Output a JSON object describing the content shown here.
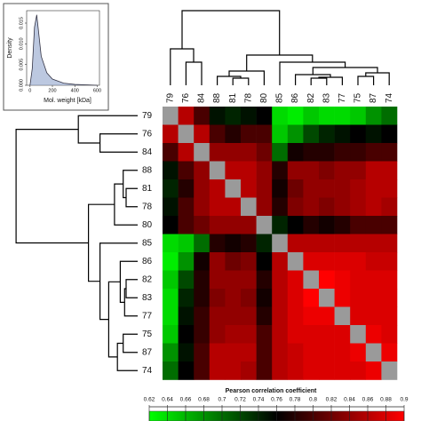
{
  "chart_data": [
    {
      "type": "heatmap",
      "categories": [
        "79",
        "76",
        "84",
        "88",
        "81",
        "78",
        "80",
        "85",
        "86",
        "82",
        "83",
        "77",
        "75",
        "87",
        "74"
      ],
      "matrix": [
        [
          null,
          0.86,
          0.8,
          0.75,
          0.74,
          0.75,
          0.76,
          0.64,
          0.63,
          0.65,
          0.64,
          0.64,
          0.65,
          0.68,
          0.7
        ],
        [
          0.86,
          null,
          0.86,
          0.8,
          0.78,
          0.8,
          0.8,
          0.65,
          0.68,
          0.72,
          0.74,
          0.75,
          0.76,
          0.75,
          0.76
        ],
        [
          0.8,
          0.86,
          null,
          0.84,
          0.84,
          0.84,
          0.82,
          0.7,
          0.77,
          0.78,
          0.78,
          0.79,
          0.79,
          0.8,
          0.8
        ],
        [
          0.75,
          0.8,
          0.84,
          null,
          0.86,
          0.86,
          0.84,
          0.78,
          0.84,
          0.84,
          0.83,
          0.84,
          0.84,
          0.86,
          0.86
        ],
        [
          0.74,
          0.78,
          0.84,
          0.86,
          null,
          0.86,
          0.84,
          0.77,
          0.82,
          0.84,
          0.84,
          0.84,
          0.85,
          0.86,
          0.86
        ],
        [
          0.75,
          0.8,
          0.84,
          0.86,
          0.86,
          null,
          0.84,
          0.78,
          0.83,
          0.84,
          0.83,
          0.84,
          0.85,
          0.86,
          0.85
        ],
        [
          0.76,
          0.8,
          0.82,
          0.84,
          0.84,
          0.84,
          null,
          0.74,
          0.76,
          0.78,
          0.77,
          0.78,
          0.8,
          0.8,
          0.8
        ],
        [
          0.64,
          0.65,
          0.7,
          0.78,
          0.77,
          0.78,
          0.74,
          null,
          0.86,
          0.86,
          0.86,
          0.86,
          0.86,
          0.86,
          0.86
        ],
        [
          0.63,
          0.68,
          0.77,
          0.84,
          0.82,
          0.83,
          0.76,
          0.86,
          null,
          0.88,
          0.88,
          0.88,
          0.88,
          0.87,
          0.87
        ],
        [
          0.65,
          0.72,
          0.78,
          0.84,
          0.84,
          0.84,
          0.78,
          0.86,
          0.88,
          null,
          0.9,
          0.89,
          0.88,
          0.88,
          0.88
        ],
        [
          0.64,
          0.74,
          0.78,
          0.83,
          0.84,
          0.83,
          0.77,
          0.86,
          0.88,
          0.9,
          null,
          0.89,
          0.88,
          0.88,
          0.88
        ],
        [
          0.64,
          0.75,
          0.79,
          0.84,
          0.84,
          0.84,
          0.78,
          0.86,
          0.88,
          0.89,
          0.89,
          null,
          0.88,
          0.88,
          0.88
        ],
        [
          0.65,
          0.76,
          0.79,
          0.84,
          0.85,
          0.85,
          0.8,
          0.86,
          0.88,
          0.88,
          0.88,
          0.88,
          null,
          0.89,
          0.88
        ],
        [
          0.68,
          0.75,
          0.8,
          0.86,
          0.86,
          0.86,
          0.8,
          0.86,
          0.87,
          0.88,
          0.88,
          0.88,
          0.89,
          null,
          0.89
        ],
        [
          0.7,
          0.76,
          0.8,
          0.86,
          0.86,
          0.85,
          0.8,
          0.86,
          0.87,
          0.88,
          0.88,
          0.88,
          0.88,
          0.89,
          null
        ]
      ],
      "zlim": [
        0.62,
        0.9
      ],
      "zmid": 0.76,
      "zticks": [
        0.62,
        0.64,
        0.66,
        0.68,
        0.7,
        0.72,
        0.74,
        0.76,
        0.78,
        0.8,
        0.82,
        0.84,
        0.86,
        0.88,
        0.9
      ],
      "colors": {
        "low": "#00ff00",
        "mid": "#000000",
        "high": "#ff0000",
        "missing": "#9a9a9a"
      },
      "colorbar_title": "Pearson correlation coefficient"
    },
    {
      "type": "area",
      "x": [
        0,
        20,
        40,
        60,
        80,
        100,
        150,
        200,
        300,
        400,
        600
      ],
      "values": [
        0,
        0.004,
        0.014,
        0.017,
        0.012,
        0.007,
        0.003,
        0.0015,
        0.0005,
        0.0002,
        0
      ],
      "color": "#8fa3cc",
      "xlim": [
        -30,
        620
      ],
      "ylim": [
        0,
        0.018
      ],
      "xticks": [
        0,
        200,
        400,
        600
      ],
      "yticks": [
        {
          "value": 0,
          "label": "0.000"
        },
        0.005,
        {
          "value": 0.01,
          "label": "0.010"
        },
        0.015
      ],
      "xlabel": "Mol. weight [kDa]",
      "ylabel": "Density"
    }
  ]
}
